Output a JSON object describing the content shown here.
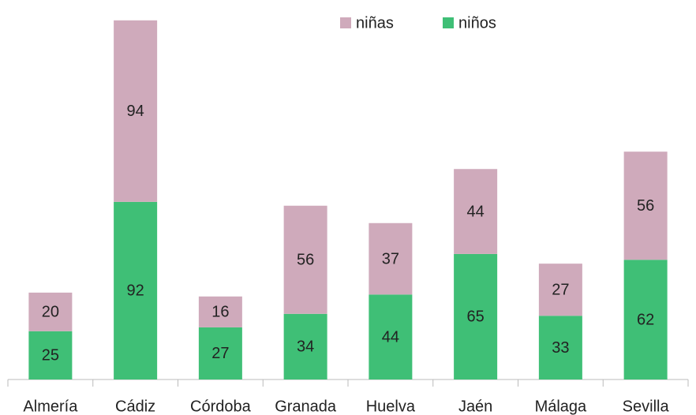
{
  "chart_data": {
    "type": "stacked_bar",
    "categories": [
      "Almería",
      "Cádiz",
      "Córdoba",
      "Granada",
      "Huelva",
      "Jaén",
      "Málaga",
      "Sevilla"
    ],
    "series": [
      {
        "name": "niños",
        "color": "#3fbf76",
        "values": [
          25,
          92,
          27,
          34,
          44,
          65,
          33,
          62
        ]
      },
      {
        "name": "niñas",
        "color": "#cfaabb",
        "values": [
          20,
          94,
          16,
          56,
          37,
          44,
          27,
          56
        ]
      }
    ],
    "ylim": [
      0,
      190
    ],
    "legend": "top"
  }
}
